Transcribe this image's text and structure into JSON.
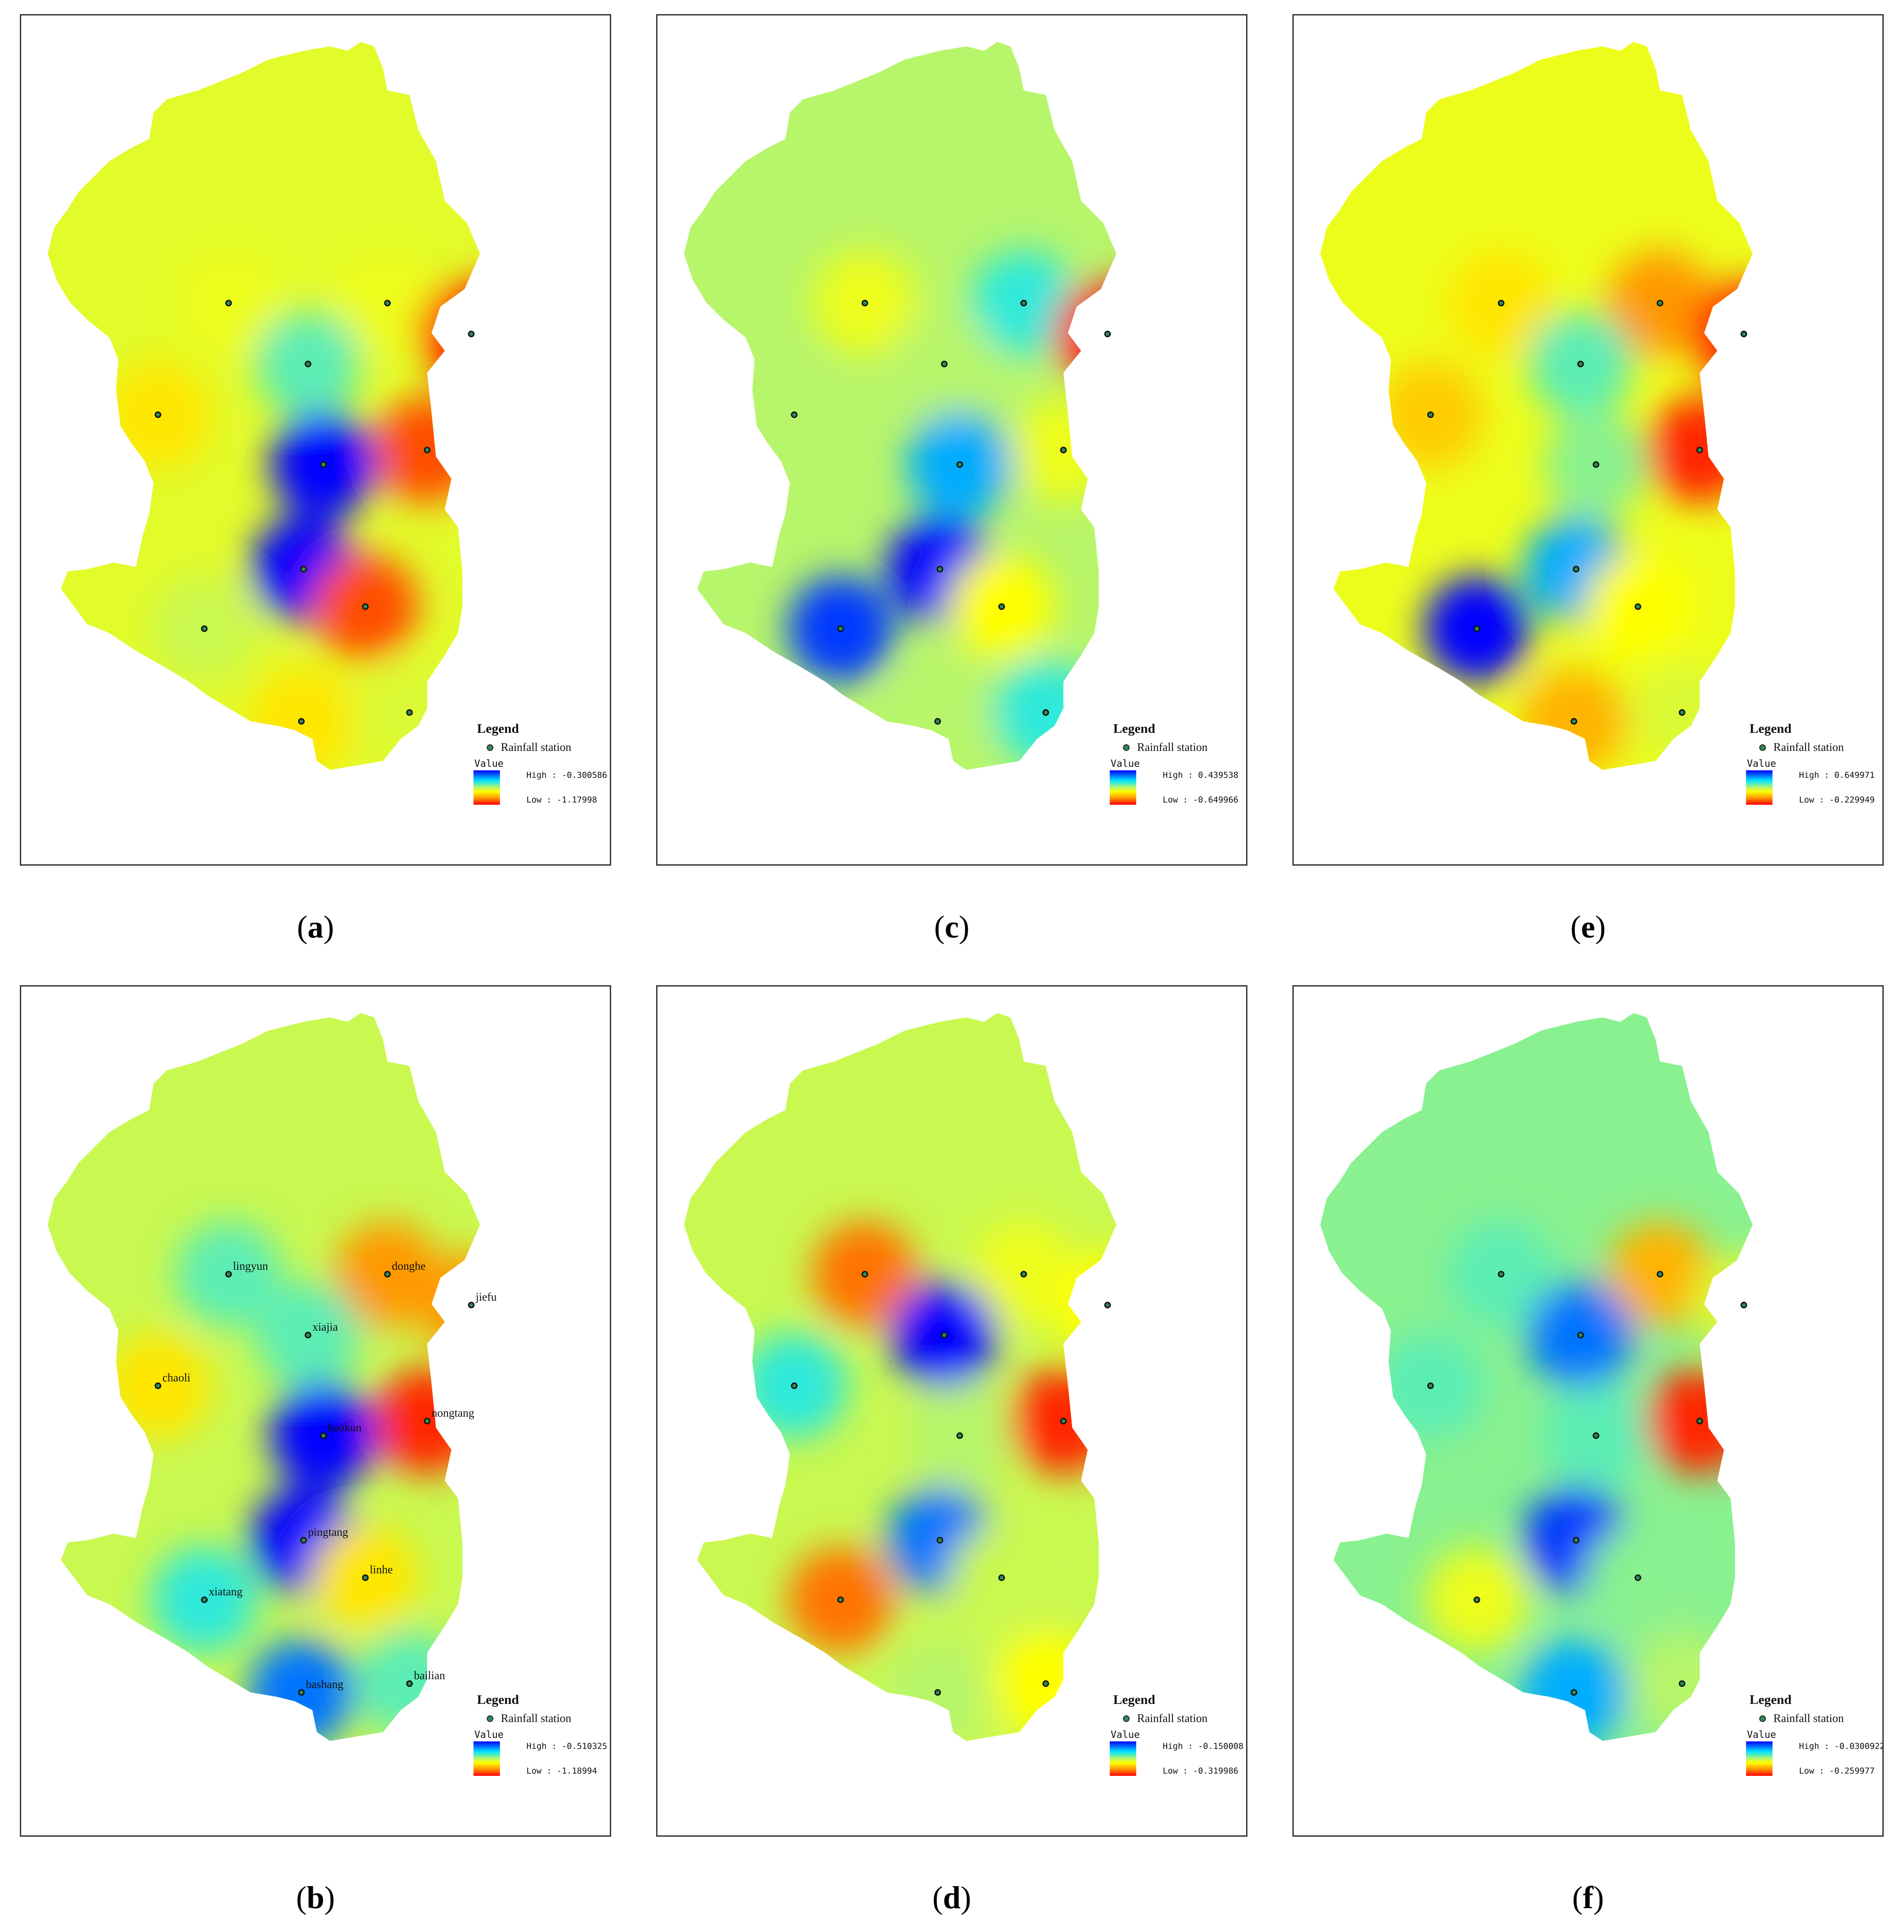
{
  "legend_common": {
    "title": "Legend",
    "station_label": "Rainfall station",
    "value_label": "Value",
    "ramp_colors": [
      "#0000ff",
      "#00e5ff",
      "#b7f56a",
      "#ffff00",
      "#ff9900",
      "#ff0000"
    ]
  },
  "panels": [
    {
      "id": "a",
      "caption": "a",
      "high": "High : -0.300586",
      "low": "Low : -1.17998",
      "show_labels": false,
      "station_values": {
        "lingyun": 0.55,
        "donghe": 0.55,
        "jiefu": 1.0,
        "xiajia": 0.3,
        "chaoli": 0.65,
        "nongtang": 0.9,
        "baokun": 0.0,
        "pingtang": 0.0,
        "linhe": 0.9,
        "xiatang": 0.45,
        "bashang": 0.65,
        "bailian": 0.5
      },
      "base_value": 0.52
    },
    {
      "id": "b",
      "caption": "b",
      "high": "High : -0.510325",
      "low": "Low : -1.18994",
      "show_labels": true,
      "station_values": {
        "lingyun": 0.3,
        "donghe": 0.8,
        "jiefu": 0.8,
        "xiajia": 0.3,
        "chaoli": 0.65,
        "nongtang": 0.95,
        "baokun": 0.0,
        "pingtang": 0.0,
        "linhe": 0.65,
        "xiatang": 0.25,
        "bashang": 0.1,
        "bailian": 0.3
      },
      "base_value": 0.45
    },
    {
      "id": "c",
      "caption": "c",
      "high": "High : 0.439538",
      "low": "Low : -0.649966",
      "show_labels": false,
      "station_values": {
        "lingyun": 0.55,
        "donghe": 0.25,
        "jiefu": 1.0,
        "xiajia": 0.4,
        "chaoli": 0.4,
        "nongtang": 0.55,
        "baokun": 0.15,
        "pingtang": 0.0,
        "linhe": 0.6,
        "xiatang": 0.05,
        "bashang": 0.4,
        "bailian": 0.25
      },
      "base_value": 0.4
    },
    {
      "id": "d",
      "caption": "d",
      "high": "High : -0.150008",
      "low": "Low : -0.319986",
      "show_labels": false,
      "station_values": {
        "lingyun": 0.85,
        "donghe": 0.55,
        "jiefu": 0.6,
        "xiajia": 0.0,
        "chaoli": 0.25,
        "nongtang": 0.95,
        "baokun": 0.4,
        "pingtang": 0.1,
        "linhe": 0.45,
        "xiatang": 0.85,
        "bashang": 0.4,
        "bailian": 0.6
      },
      "base_value": 0.45
    },
    {
      "id": "e",
      "caption": "e",
      "high": "High : 0.649971",
      "low": "Low : -0.229949",
      "show_labels": false,
      "station_values": {
        "lingyun": 0.65,
        "donghe": 0.8,
        "jiefu": 0.95,
        "xiajia": 0.3,
        "chaoli": 0.7,
        "nongtang": 0.95,
        "baokun": 0.35,
        "pingtang": 0.15,
        "linhe": 0.6,
        "xiatang": 0.0,
        "bashang": 0.75,
        "bailian": 0.5
      },
      "base_value": 0.55
    },
    {
      "id": "f",
      "caption": "f",
      "high": "High : -0.0300922",
      "low": "Low : -0.259977",
      "show_labels": false,
      "station_values": {
        "lingyun": 0.3,
        "donghe": 0.75,
        "jiefu": 0.5,
        "xiajia": 0.1,
        "chaoli": 0.3,
        "nongtang": 0.95,
        "baokun": 0.3,
        "pingtang": 0.05,
        "linhe": 0.35,
        "xiatang": 0.55,
        "bashang": 0.15,
        "bailian": 0.4
      },
      "base_value": 0.35
    }
  ],
  "stations": [
    {
      "name": "lingyun"
    },
    {
      "name": "donghe"
    },
    {
      "name": "jiefu"
    },
    {
      "name": "xiajia"
    },
    {
      "name": "chaoli"
    },
    {
      "name": "nongtang"
    },
    {
      "name": "baokun"
    },
    {
      "name": "pingtang"
    },
    {
      "name": "linhe"
    },
    {
      "name": "xiatang"
    },
    {
      "name": "bashang"
    },
    {
      "name": "bailian"
    }
  ]
}
